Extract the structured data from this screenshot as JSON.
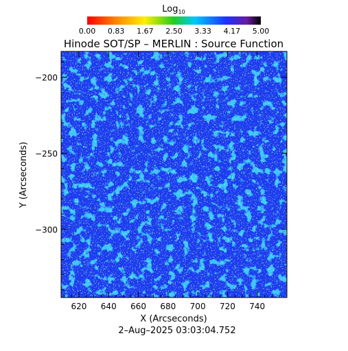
{
  "chart_data": {
    "type": "heatmap",
    "title": "Hinode SOT/SP – MERLIN : Source Function",
    "xlabel": "X (Arcseconds)",
    "ylabel": "Y (Arcseconds)",
    "xlim": [
      608,
      760
    ],
    "ylim": [
      -345,
      -183
    ],
    "xticks": [
      620,
      640,
      660,
      680,
      700,
      720,
      740
    ],
    "yticks": [
      -200,
      -250,
      -300
    ],
    "colorbar": {
      "label_main": "Log",
      "label_sub": "10",
      "range": [
        0.0,
        5.0
      ],
      "ticks": [
        "0.00",
        "0.83",
        "1.67",
        "2.50",
        "3.33",
        "4.17",
        "5.00"
      ],
      "colormap": "rainbow (red→yellow→green→cyan→blue→purple→black)",
      "position": "top"
    },
    "pixel_value_typical": 4.0,
    "pixel_value_spread": [
      3.2,
      4.3
    ],
    "timestamp": "2–Aug–2025 03:03:04.752"
  }
}
